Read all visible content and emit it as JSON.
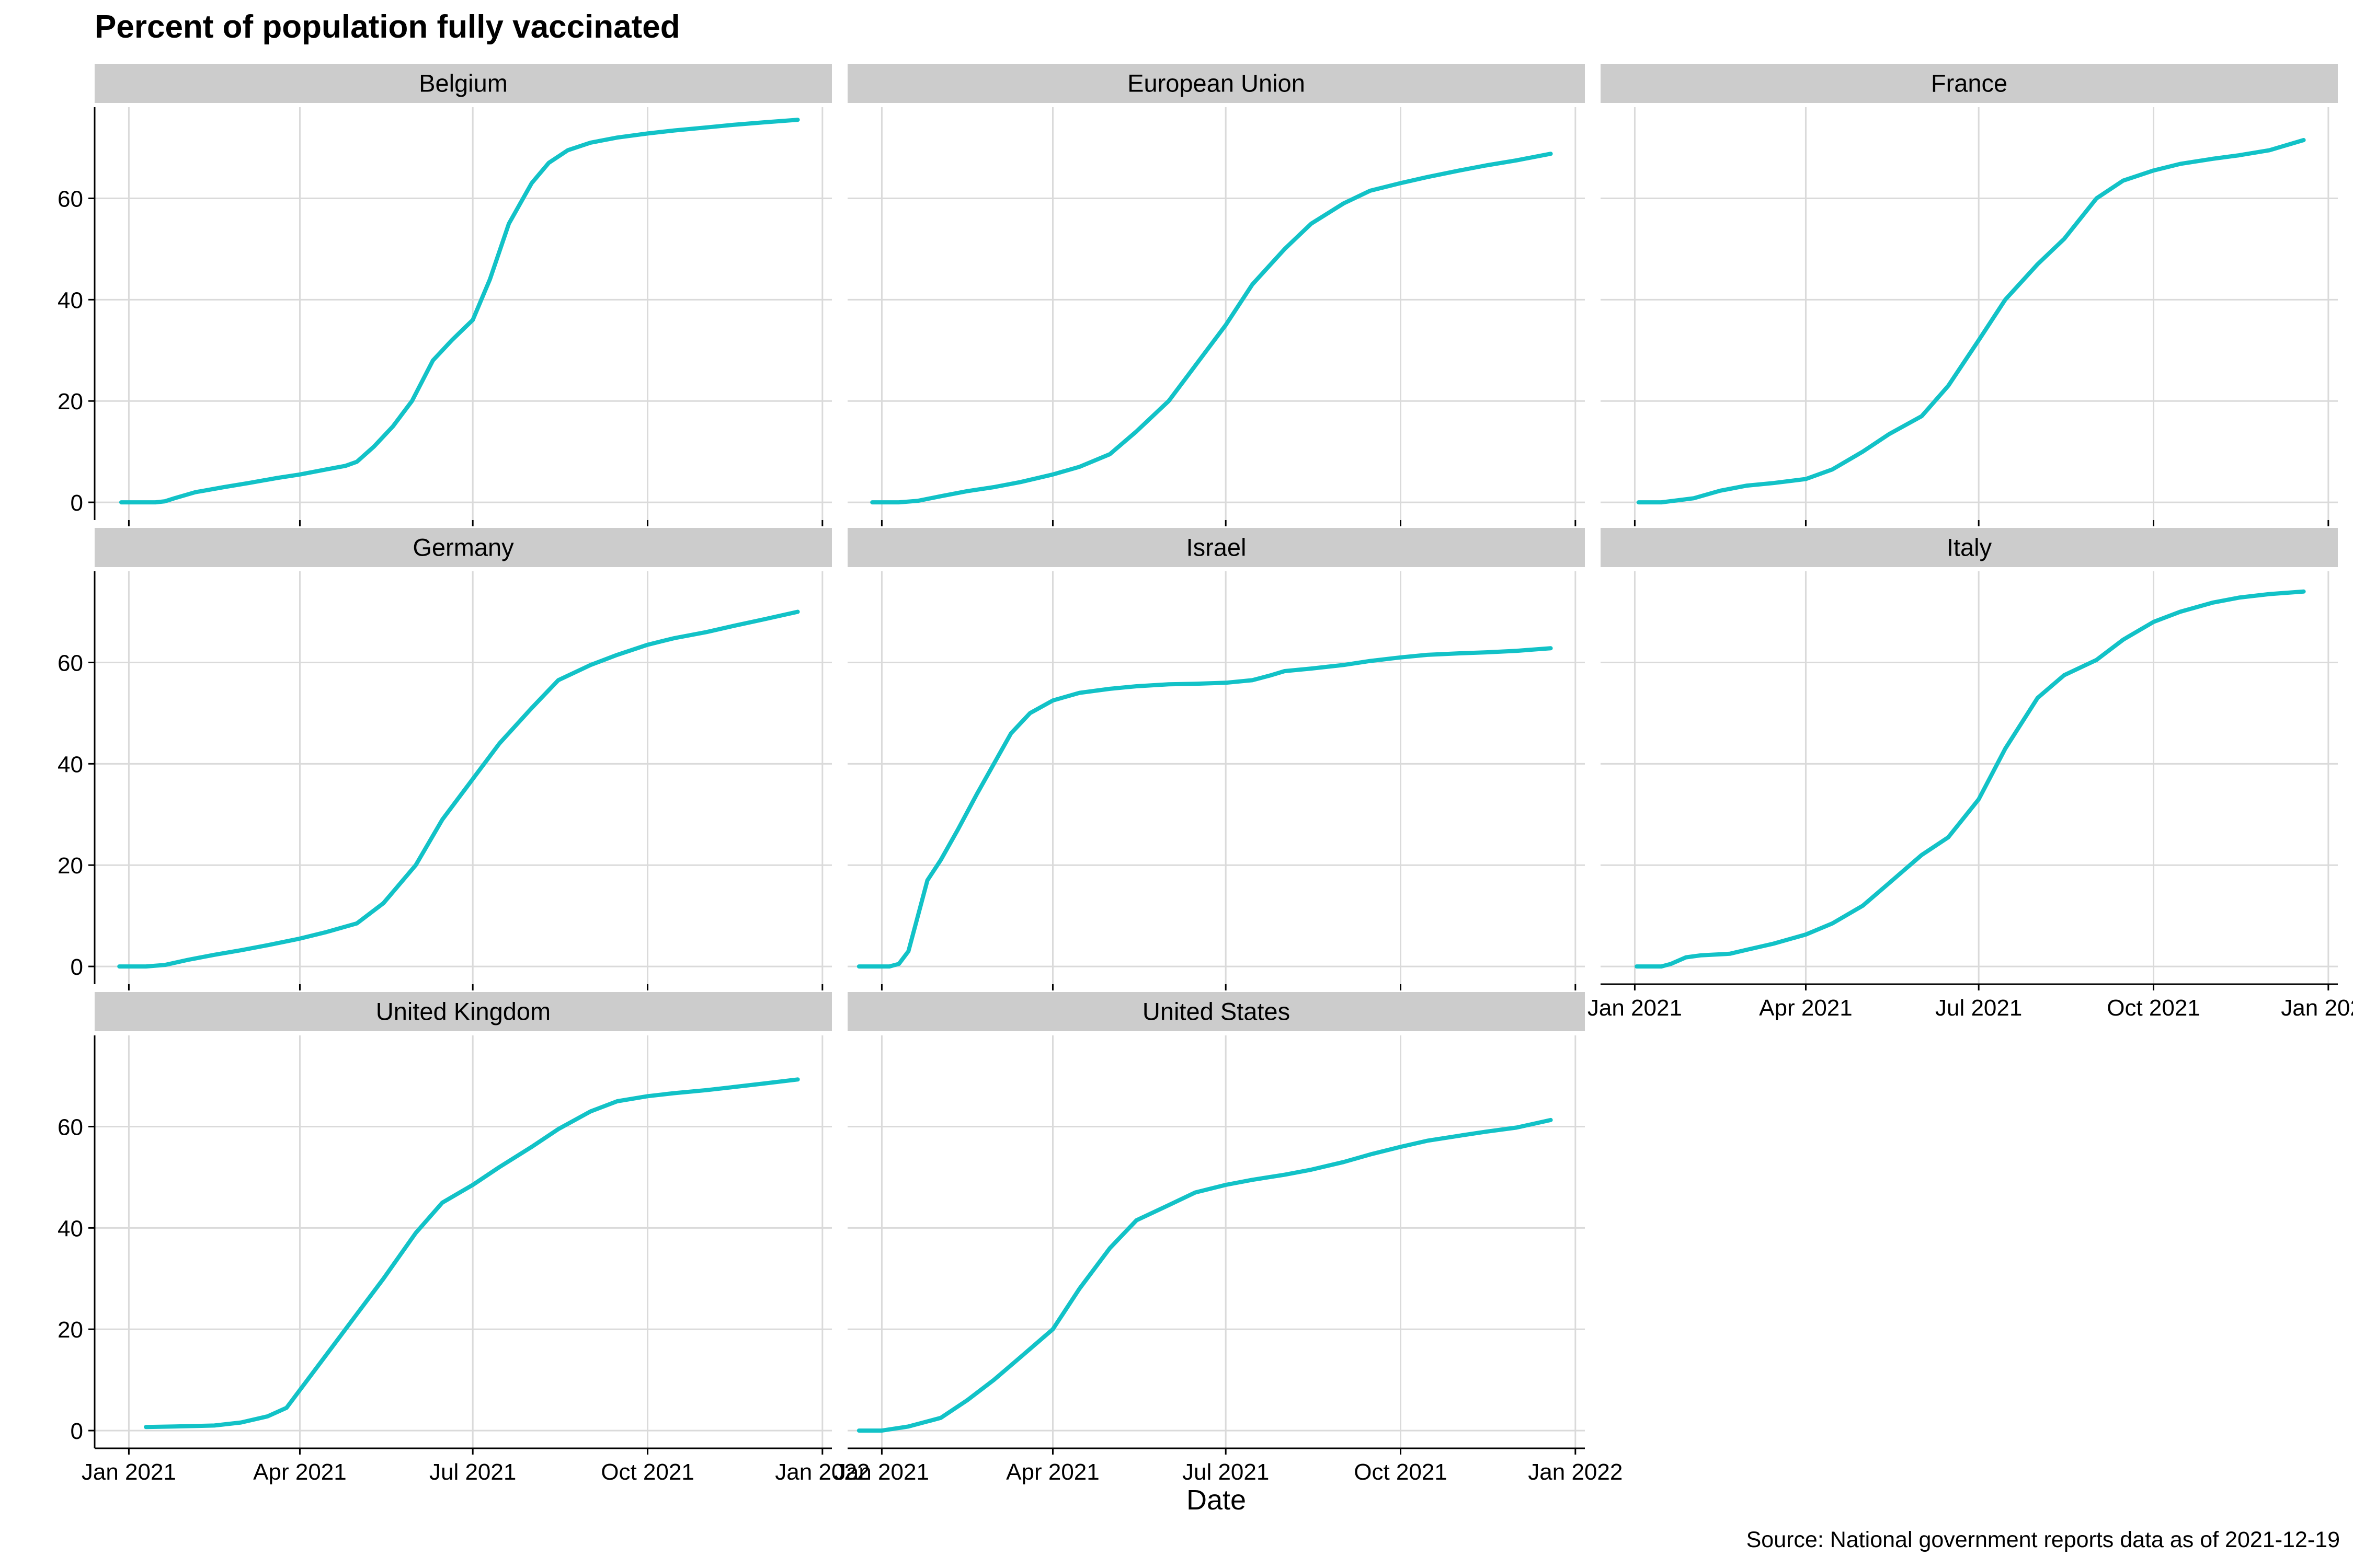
{
  "title": "Percent of population fully vaccinated",
  "caption": "Source: National government reports data as of 2021-12-19",
  "colors": {
    "line": "#12C2C7",
    "strip_bg": "#CCCCCC",
    "grid": "#DADADA",
    "axis": "#000000",
    "text": "#000000",
    "background": "#FFFFFF"
  },
  "chart_data": {
    "type": "line",
    "facet": "wrap",
    "xlabel": "Date",
    "ylabel": "",
    "xlim": [
      "2020-12-14",
      "2022-01-06"
    ],
    "ylim": [
      -3.5,
      78
    ],
    "x_ticks": [
      {
        "value": "2021-01-01",
        "label": "Jan 2021"
      },
      {
        "value": "2021-04-01",
        "label": "Apr 2021"
      },
      {
        "value": "2021-07-01",
        "label": "Jul 2021"
      },
      {
        "value": "2021-10-01",
        "label": "Oct 2021"
      },
      {
        "value": "2022-01-01",
        "label": "Jan 2022"
      }
    ],
    "y_ticks": [
      0,
      20,
      40,
      60
    ],
    "grid": true,
    "legend": "none",
    "panels": [
      {
        "name": "Belgium",
        "x": [
          "2020-12-28",
          "2021-01-15",
          "2021-01-20",
          "2021-01-25",
          "2021-02-05",
          "2021-02-20",
          "2021-03-05",
          "2021-03-20",
          "2021-04-01",
          "2021-04-15",
          "2021-04-25",
          "2021-05-01",
          "2021-05-10",
          "2021-05-20",
          "2021-05-30",
          "2021-06-10",
          "2021-06-20",
          "2021-07-01",
          "2021-07-10",
          "2021-07-20",
          "2021-08-01",
          "2021-08-10",
          "2021-08-20",
          "2021-09-01",
          "2021-09-15",
          "2021-10-01",
          "2021-10-15",
          "2021-11-01",
          "2021-11-15",
          "2021-12-01",
          "2021-12-19"
        ],
        "y": [
          0,
          0,
          0.2,
          0.8,
          2.0,
          3.0,
          3.8,
          4.8,
          5.5,
          6.5,
          7.2,
          8.0,
          11.0,
          15.0,
          20.0,
          28.0,
          32.0,
          36.0,
          44.0,
          55.0,
          63.0,
          67.0,
          69.5,
          71.0,
          72.0,
          72.8,
          73.4,
          74.0,
          74.5,
          75.0,
          75.5
        ]
      },
      {
        "name": "European Union",
        "x": [
          "2020-12-27",
          "2021-01-10",
          "2021-01-20",
          "2021-02-01",
          "2021-02-15",
          "2021-03-01",
          "2021-03-15",
          "2021-04-01",
          "2021-04-15",
          "2021-05-01",
          "2021-05-15",
          "2021-06-01",
          "2021-06-15",
          "2021-07-01",
          "2021-07-15",
          "2021-08-01",
          "2021-08-15",
          "2021-09-01",
          "2021-09-15",
          "2021-10-01",
          "2021-10-15",
          "2021-11-01",
          "2021-11-15",
          "2021-12-01",
          "2021-12-19"
        ],
        "y": [
          0,
          0,
          0.3,
          1.2,
          2.2,
          3.0,
          4.0,
          5.5,
          7.0,
          9.5,
          14.0,
          20.0,
          27.0,
          35.0,
          43.0,
          50.0,
          55.0,
          59.0,
          61.5,
          63.0,
          64.2,
          65.5,
          66.5,
          67.5,
          68.8
        ]
      },
      {
        "name": "France",
        "x": [
          "2021-01-03",
          "2021-01-15",
          "2021-02-01",
          "2021-02-15",
          "2021-03-01",
          "2021-03-15",
          "2021-04-01",
          "2021-04-15",
          "2021-05-01",
          "2021-05-15",
          "2021-06-01",
          "2021-06-15",
          "2021-07-01",
          "2021-07-15",
          "2021-08-01",
          "2021-08-15",
          "2021-09-01",
          "2021-09-15",
          "2021-10-01",
          "2021-10-15",
          "2021-11-01",
          "2021-11-15",
          "2021-12-01",
          "2021-12-19"
        ],
        "y": [
          0,
          0,
          0.8,
          2.3,
          3.3,
          3.8,
          4.6,
          6.5,
          10.0,
          13.5,
          17.0,
          23.0,
          32.0,
          40.0,
          47.0,
          52.0,
          60.0,
          63.5,
          65.5,
          66.8,
          67.8,
          68.5,
          69.5,
          71.5
        ]
      },
      {
        "name": "Germany",
        "x": [
          "2020-12-27",
          "2021-01-10",
          "2021-01-20",
          "2021-02-01",
          "2021-02-15",
          "2021-03-01",
          "2021-03-15",
          "2021-04-01",
          "2021-04-15",
          "2021-05-01",
          "2021-05-15",
          "2021-06-01",
          "2021-06-15",
          "2021-07-01",
          "2021-07-15",
          "2021-08-01",
          "2021-08-15",
          "2021-09-01",
          "2021-09-15",
          "2021-10-01",
          "2021-10-15",
          "2021-11-01",
          "2021-11-15",
          "2021-12-01",
          "2021-12-19"
        ],
        "y": [
          0,
          0,
          0.3,
          1.3,
          2.3,
          3.2,
          4.2,
          5.5,
          6.8,
          8.5,
          12.5,
          20.0,
          29.0,
          37.0,
          44.0,
          51.0,
          56.5,
          59.5,
          61.5,
          63.5,
          64.8,
          66.0,
          67.2,
          68.5,
          70.0
        ]
      },
      {
        "name": "Israel",
        "x": [
          "2020-12-20",
          "2021-01-05",
          "2021-01-10",
          "2021-01-15",
          "2021-01-20",
          "2021-01-25",
          "2021-02-01",
          "2021-02-10",
          "2021-02-20",
          "2021-03-01",
          "2021-03-10",
          "2021-03-20",
          "2021-04-01",
          "2021-04-15",
          "2021-05-01",
          "2021-05-15",
          "2021-06-01",
          "2021-06-15",
          "2021-07-01",
          "2021-07-15",
          "2021-07-25",
          "2021-08-01",
          "2021-08-15",
          "2021-09-01",
          "2021-09-15",
          "2021-10-01",
          "2021-10-15",
          "2021-11-01",
          "2021-11-15",
          "2021-12-01",
          "2021-12-19"
        ],
        "y": [
          0,
          0,
          0.5,
          3.0,
          10.0,
          17.0,
          21.0,
          27.0,
          34.0,
          40.0,
          46.0,
          50.0,
          52.5,
          54.0,
          54.8,
          55.3,
          55.7,
          55.8,
          56.0,
          56.5,
          57.5,
          58.3,
          58.8,
          59.5,
          60.3,
          61.0,
          61.5,
          61.8,
          62.0,
          62.3,
          62.8
        ]
      },
      {
        "name": "Italy",
        "x": [
          "2021-01-02",
          "2021-01-15",
          "2021-01-20",
          "2021-01-28",
          "2021-02-05",
          "2021-02-20",
          "2021-03-01",
          "2021-03-15",
          "2021-04-01",
          "2021-04-15",
          "2021-05-01",
          "2021-05-15",
          "2021-06-01",
          "2021-06-15",
          "2021-07-01",
          "2021-07-15",
          "2021-08-01",
          "2021-08-15",
          "2021-09-01",
          "2021-09-15",
          "2021-10-01",
          "2021-10-15",
          "2021-11-01",
          "2021-11-15",
          "2021-12-01",
          "2021-12-19"
        ],
        "y": [
          0,
          0,
          0.5,
          1.8,
          2.2,
          2.5,
          3.3,
          4.5,
          6.3,
          8.5,
          12.0,
          16.5,
          22.0,
          25.5,
          33.0,
          43.0,
          53.0,
          57.5,
          60.5,
          64.5,
          68.0,
          70.0,
          71.8,
          72.8,
          73.5,
          74.0
        ]
      },
      {
        "name": "United Kingdom",
        "x": [
          "2021-01-10",
          "2021-01-25",
          "2021-02-15",
          "2021-03-01",
          "2021-03-15",
          "2021-03-25",
          "2021-04-01",
          "2021-04-15",
          "2021-05-01",
          "2021-05-15",
          "2021-06-01",
          "2021-06-15",
          "2021-07-01",
          "2021-07-15",
          "2021-08-01",
          "2021-08-15",
          "2021-09-01",
          "2021-09-15",
          "2021-10-01",
          "2021-10-15",
          "2021-11-01",
          "2021-11-15",
          "2021-12-01",
          "2021-12-19"
        ],
        "y": [
          0.7,
          0.8,
          1.0,
          1.6,
          2.8,
          4.5,
          8.0,
          15.0,
          23.0,
          30.0,
          39.0,
          45.0,
          48.5,
          52.0,
          56.0,
          59.5,
          63.0,
          65.0,
          66.0,
          66.6,
          67.2,
          67.8,
          68.5,
          69.3
        ]
      },
      {
        "name": "United States",
        "x": [
          "2020-12-20",
          "2021-01-01",
          "2021-01-15",
          "2021-02-01",
          "2021-02-15",
          "2021-03-01",
          "2021-03-15",
          "2021-04-01",
          "2021-04-15",
          "2021-05-01",
          "2021-05-15",
          "2021-06-01",
          "2021-06-15",
          "2021-07-01",
          "2021-07-15",
          "2021-08-01",
          "2021-08-15",
          "2021-09-01",
          "2021-09-15",
          "2021-10-01",
          "2021-10-15",
          "2021-11-01",
          "2021-11-15",
          "2021-12-01",
          "2021-12-19"
        ],
        "y": [
          0,
          0,
          0.8,
          2.5,
          6.0,
          10.0,
          14.5,
          20.0,
          28.0,
          36.0,
          41.5,
          44.5,
          47.0,
          48.5,
          49.5,
          50.5,
          51.5,
          53.0,
          54.5,
          56.0,
          57.2,
          58.2,
          59.0,
          59.8,
          61.3
        ]
      }
    ]
  }
}
